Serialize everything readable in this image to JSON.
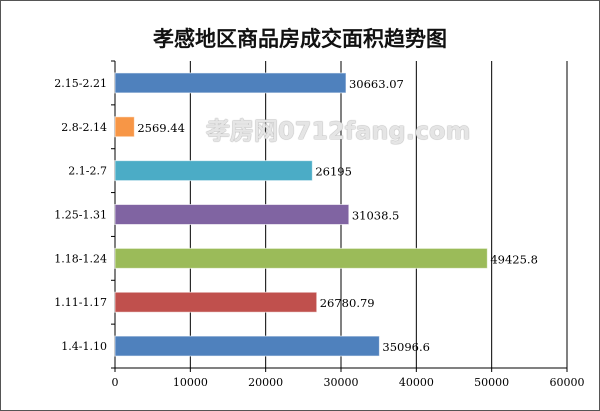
{
  "chart_data": {
    "type": "bar",
    "orientation": "horizontal",
    "title": "孝感地区商品房成交面积趋势图",
    "categories": [
      "2.15-2.21",
      "2.8-2.14",
      "2.1-2.7",
      "1.25-1.31",
      "1.18-1.24",
      "1.11-1.17",
      "1.4-1.10"
    ],
    "values": [
      30663.07,
      2569.44,
      26195,
      31038.5,
      49425.8,
      26780.79,
      35096.6
    ],
    "labels": [
      "30663.07",
      "2569.44",
      "26195",
      "31038.5",
      "49425.8",
      "26780.79",
      "35096.6"
    ],
    "colors": [
      "#4f81bd",
      "#f79646",
      "#4bacc6",
      "#8064a2",
      "#9bbb59",
      "#c0504d",
      "#4f81bd"
    ],
    "xlim": [
      0,
      60000
    ],
    "xticks": [
      "0",
      "10000",
      "20000",
      "30000",
      "40000",
      "50000",
      "60000"
    ],
    "grid": true,
    "xlabel": "",
    "ylabel": ""
  },
  "watermark": "孝房网0712fang.com"
}
